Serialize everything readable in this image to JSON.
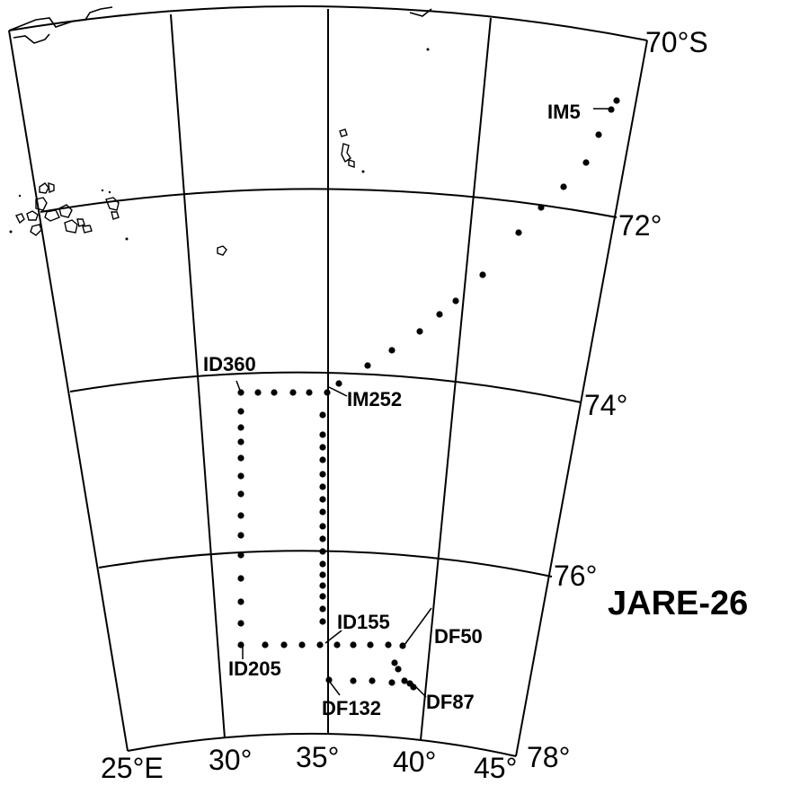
{
  "title": "JARE-26",
  "latitude_labels": [
    "70°S",
    "72°",
    "74°",
    "76°",
    "78°"
  ],
  "longitude_labels": [
    "25°E",
    "30°",
    "35°",
    "40°",
    "45°"
  ],
  "station_labels": [
    "IM5",
    "IM252",
    "ID360",
    "ID155",
    "ID205",
    "DF50",
    "DF132",
    "DF87"
  ],
  "map_elements": {
    "graticule": "grid-lines",
    "route_marker": "dot-icon",
    "coastline": "coastline-outline",
    "islands": "island-outlines"
  },
  "colors": {
    "ink": "#000000",
    "background": "#ffffff"
  }
}
